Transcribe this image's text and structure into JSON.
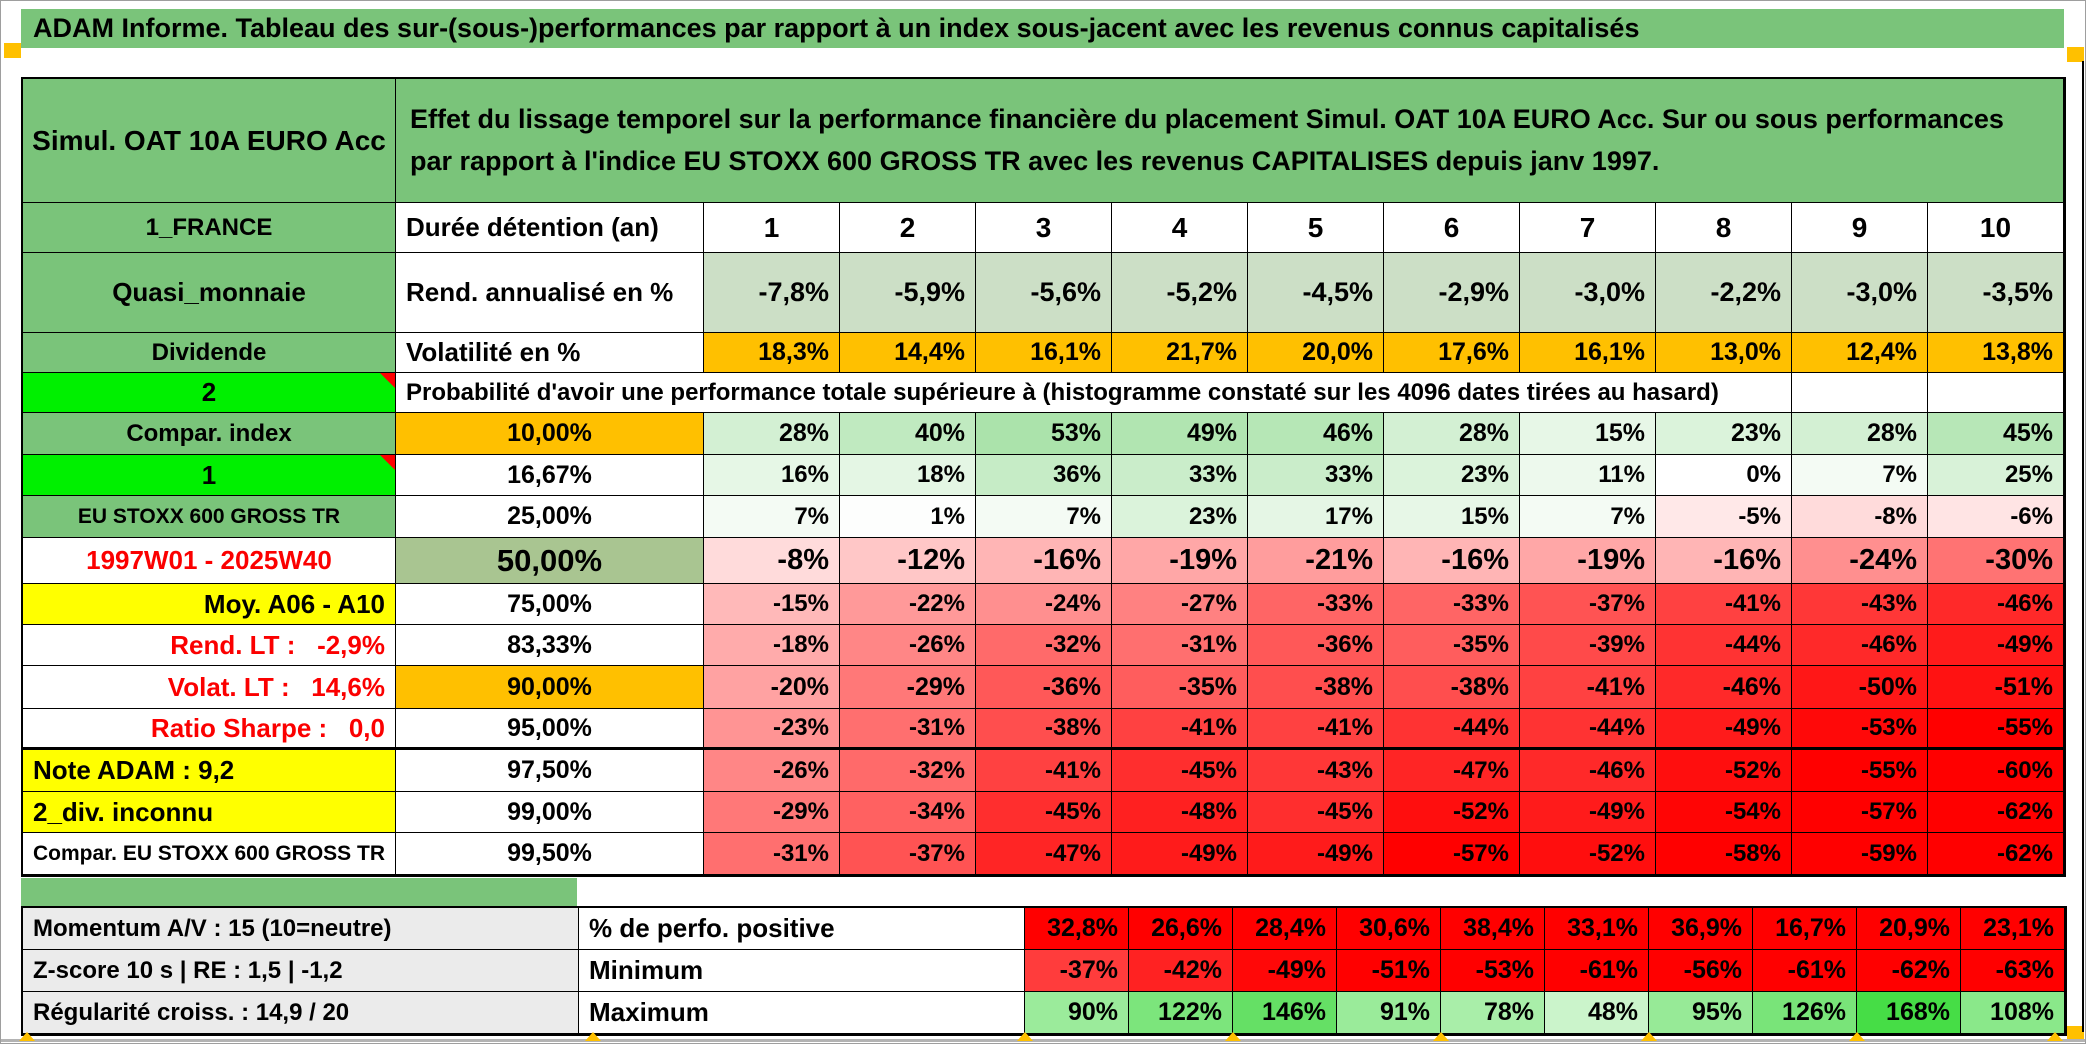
{
  "title": "ADAM Informe. Tableau des sur-(sous-)performances par rapport à un index sous-jacent avec les revenus connus capitalisés",
  "header": {
    "product": "Simul. OAT 10A EURO Acc",
    "description": "Effet du lissage temporel sur la performance financière du placement Simul. OAT 10A EURO Acc. Sur ou sous performances par rapport à l'indice EU STOXX 600 GROSS TR avec les revenus CAPITALISES depuis janv 1997."
  },
  "colors": {
    "header_green": "#7ac47a",
    "bright_green": "#00f000",
    "orange": "#ffc000",
    "yellow": "#ffff00",
    "sage_green": "#a9c591",
    "label_gray": "#ebebeb",
    "full_red": "#ff0000",
    "rend_row_green": "#ccdfc6"
  },
  "upper": {
    "rows": [
      {
        "c1": "1_FRANCE",
        "c1c": "bg-green c fs24",
        "c2": "Durée détention (an)",
        "c2c": "l fs26",
        "vc": "c fs28",
        "vals": [
          "1",
          "2",
          "3",
          "4",
          "5",
          "6",
          "7",
          "8",
          "9",
          "10"
        ],
        "bgs": [
          "#ffffff",
          "#ffffff",
          "#ffffff",
          "#ffffff",
          "#ffffff",
          "#ffffff",
          "#ffffff",
          "#ffffff",
          "#ffffff",
          "#ffffff"
        ]
      },
      {
        "c1": "Quasi_monnaie",
        "c1c": "bg-green c fs26",
        "c2": "Rend. annualisé en %",
        "c2c": "l fs26",
        "vc": "r fs27",
        "vals": [
          "-7,8%",
          "-5,9%",
          "-5,6%",
          "-5,2%",
          "-4,5%",
          "-2,9%",
          "-3,0%",
          "-2,2%",
          "-3,0%",
          "-3,5%"
        ],
        "bgs": [
          "#ccdfc6",
          "#ccdfc6",
          "#ccdfc6",
          "#ccdfc6",
          "#ccdfc6",
          "#ccdfc6",
          "#ccdfc6",
          "#ccdfc6",
          "#ccdfc6",
          "#ccdfc6"
        ]
      },
      {
        "c1": "Dividende",
        "c1c": "bg-green c fs24",
        "c2": "Volatilité en %",
        "c2c": "l fs26",
        "vc": "r fs25 w6",
        "vals": [
          "18,3%",
          "14,4%",
          "16,1%",
          "21,7%",
          "20,0%",
          "17,6%",
          "16,1%",
          "13,0%",
          "12,4%",
          "13,8%"
        ],
        "bgs": [
          "#ffc000",
          "#ffc000",
          "#ffc000",
          "#ffc000",
          "#ffc000",
          "#ffc000",
          "#ffc000",
          "#ffc000",
          "#ffc000",
          "#ffc000"
        ]
      },
      {
        "type": "note",
        "c1": "2",
        "c1c": "bg-bright corner c fs26",
        "notec": "l fs24",
        "note": "Probabilité d'avoir une performance totale supérieure à (histogramme constaté sur les 4096 dates tirées au hasard)"
      },
      {
        "c1": "Compar. index",
        "c1c": "bg-green c fs24",
        "c2": "10,00%",
        "c2c": "bg-orange c fs25",
        "vc": "r fs25",
        "vals": [
          "28%",
          "40%",
          "53%",
          "49%",
          "46%",
          "28%",
          "15%",
          "23%",
          "28%",
          "45%"
        ],
        "bgs": [
          "#d3f0d3",
          "#c0eac0",
          "#abe3ab",
          "#b1e5b1",
          "#b6e7b6",
          "#d3f0d3",
          "#e7f7e7",
          "#dbf3db",
          "#d3f0d3",
          "#b7e7b7"
        ]
      },
      {
        "c1": "1",
        "c1c": "bg-bright corner c fs26",
        "c2": "16,67%",
        "c2c": "c fs25",
        "vc": "r fs24 w6",
        "vals": [
          "16%",
          "18%",
          "36%",
          "33%",
          "33%",
          "23%",
          "11%",
          "0%",
          "7%",
          "25%"
        ],
        "bgs": [
          "#e6f7e6",
          "#e4f6e4",
          "#c6ecc6",
          "#caedca",
          "#caedca",
          "#dbf3db",
          "#edf9ed",
          "#ffffff",
          "#f4fbf4",
          "#d8f2d8"
        ]
      },
      {
        "c1": "EU STOXX 600 GROSS TR",
        "c1c": "bg-green c fs21",
        "c2": "25,00%",
        "c2c": "c fs25",
        "vc": "r fs24 w6",
        "vals": [
          "7%",
          "1%",
          "7%",
          "23%",
          "17%",
          "15%",
          "7%",
          "-5%",
          "-8%",
          "-6%"
        ],
        "bgs": [
          "#f4fbf4",
          "#fdfefd",
          "#f4fbf4",
          "#dbf3db",
          "#e5f6e5",
          "#e7f7e7",
          "#f4fbf4",
          "#ffe8e8",
          "#ffdbdb",
          "#ffe4e4"
        ]
      },
      {
        "c1": "1997W01 - 2025W40",
        "c1c": "red c fs26",
        "c2": "50,00%",
        "c2c": "bg-sage c fs31",
        "vc": "r fs29",
        "vals": [
          "-8%",
          "-12%",
          "-16%",
          "-19%",
          "-21%",
          "-16%",
          "-19%",
          "-16%",
          "-24%",
          "-30%"
        ],
        "bgs": [
          "#ffdbdb",
          "#ffc7c7",
          "#ffb5b5",
          "#ffa7a7",
          "#ff9d9d",
          "#ffb5b5",
          "#ffa7a7",
          "#ffb5b5",
          "#ff8f8f",
          "#ff7373"
        ]
      },
      {
        "c1": "Moy. A06 - A10",
        "c1c": "bg-yellow r fs26",
        "c2": "75,00%",
        "c2c": "c fs25",
        "vc": "r fs24 w6",
        "vals": [
          "-15%",
          "-22%",
          "-24%",
          "-27%",
          "-33%",
          "-33%",
          "-37%",
          "-41%",
          "-43%",
          "-46%"
        ],
        "bgs": [
          "#ffb9b9",
          "#ff9999",
          "#ff8f8f",
          "#ff8181",
          "#ff6565",
          "#ff6565",
          "#ff5353",
          "#ff4141",
          "#ff3737",
          "#ff2929"
        ]
      },
      {
        "c1": "Rend. LT :   -2,9%",
        "c1c": "red r fs26",
        "c2": "83,33%",
        "c2c": "c fs25",
        "vc": "r fs24 w6",
        "vals": [
          "-18%",
          "-26%",
          "-32%",
          "-31%",
          "-36%",
          "-35%",
          "-39%",
          "-44%",
          "-46%",
          "-49%"
        ],
        "bgs": [
          "#ffabab",
          "#ff8686",
          "#ff6a6a",
          "#ff6f6f",
          "#ff5858",
          "#ff5d5d",
          "#ff4a4a",
          "#ff3333",
          "#ff2929",
          "#ff1b1b"
        ]
      },
      {
        "c1": "Volat. LT :   14,6%",
        "c1c": "red r fs26",
        "c2": "90,00%",
        "c2c": "bg-orange c fs25",
        "vc": "r fs25",
        "vals": [
          "-20%",
          "-29%",
          "-36%",
          "-35%",
          "-38%",
          "-38%",
          "-41%",
          "-46%",
          "-50%",
          "-51%"
        ],
        "bgs": [
          "#ffa2a2",
          "#ff7878",
          "#ff5858",
          "#ff5d5d",
          "#ff4e4e",
          "#ff4e4e",
          "#ff4141",
          "#ff2929",
          "#ff1717",
          "#ff1212"
        ]
      },
      {
        "c1": "Ratio Sharpe :   0,0",
        "c1c": "red r fs26",
        "c2": "95,00%",
        "c2c": "c fs25",
        "vc": "r fs24 w6",
        "thick": true,
        "vals": [
          "-23%",
          "-31%",
          "-38%",
          "-41%",
          "-41%",
          "-44%",
          "-44%",
          "-49%",
          "-53%",
          "-55%"
        ],
        "bgs": [
          "#ff9494",
          "#ff6f6f",
          "#ff4e4e",
          "#ff4141",
          "#ff4141",
          "#ff3333",
          "#ff3333",
          "#ff1b1b",
          "#ff0909",
          "#ff0000"
        ]
      },
      {
        "c1": "Note ADAM : 9,2",
        "c1c": "bg-yellow l fs26",
        "c2": "97,50%",
        "c2c": "c fs25",
        "vc": "r fs24 w6",
        "vals": [
          "-26%",
          "-32%",
          "-41%",
          "-45%",
          "-43%",
          "-47%",
          "-46%",
          "-52%",
          "-55%",
          "-60%"
        ],
        "bgs": [
          "#ff8686",
          "#ff6a6a",
          "#ff4141",
          "#ff2e2e",
          "#ff3737",
          "#ff2525",
          "#ff2929",
          "#ff0e0e",
          "#ff0000",
          "#ff0000"
        ]
      },
      {
        "c1": "2_div. inconnu",
        "c1c": "bg-yellow l fs26",
        "c2": "99,00%",
        "c2c": "c fs25",
        "vc": "r fs24 w6",
        "vals": [
          "-29%",
          "-34%",
          "-45%",
          "-48%",
          "-45%",
          "-52%",
          "-49%",
          "-54%",
          "-57%",
          "-62%"
        ],
        "bgs": [
          "#ff7878",
          "#ff6161",
          "#ff2e2e",
          "#ff2020",
          "#ff2e2e",
          "#ff0e0e",
          "#ff1b1b",
          "#ff0505",
          "#ff0000",
          "#ff0000"
        ]
      },
      {
        "c1": "Compar. EU STOXX 600 GROSS TR",
        "c1c": "c fs21",
        "c2": "99,50%",
        "c2c": "c fs25",
        "vc": "r fs24 w6",
        "vals": [
          "-31%",
          "-37%",
          "-47%",
          "-49%",
          "-49%",
          "-57%",
          "-52%",
          "-58%",
          "-59%",
          "-62%"
        ],
        "bgs": [
          "#ff6f6f",
          "#ff5353",
          "#ff2525",
          "#ff1b1b",
          "#ff1b1b",
          "#ff0000",
          "#ff0e0e",
          "#ff0000",
          "#ff0000",
          "#ff0000"
        ]
      }
    ]
  },
  "bottom": {
    "rows": [
      {
        "c1": "Momentum A/V : 15 (10=neutre)",
        "c1c": "bg-gray l fs24",
        "c2": "% de perfo. positive",
        "c2c": "l fs26",
        "vc": "r fs25",
        "vals": [
          "32,8%",
          "26,6%",
          "28,4%",
          "30,6%",
          "38,4%",
          "33,1%",
          "36,9%",
          "16,7%",
          "20,9%",
          "23,1%"
        ],
        "bgs": [
          "#ff0000",
          "#ff0000",
          "#ff0000",
          "#ff0000",
          "#ff0000",
          "#ff0000",
          "#ff0000",
          "#ff0000",
          "#ff0000",
          "#ff0000"
        ]
      },
      {
        "c1": "Z-score 10 s | RE : 1,5 | -1,2",
        "c1c": "bg-gray l fs24",
        "c2": "Minimum",
        "c2c": "l fs26",
        "vc": "r fs25",
        "vals": [
          "-37%",
          "-42%",
          "-49%",
          "-51%",
          "-53%",
          "-61%",
          "-56%",
          "-61%",
          "-62%",
          "-63%"
        ],
        "bgs": [
          "#ff3c3c",
          "#ff2222",
          "#ff0808",
          "#ff0000",
          "#ff0000",
          "#ff0000",
          "#ff0000",
          "#ff0000",
          "#ff0000",
          "#ff0000"
        ]
      },
      {
        "c1": "Régularité croiss. : 14,9 / 20",
        "c1c": "bg-gray l fs24",
        "c2": "Maximum",
        "c2c": "l fs26",
        "vc": "r fs25",
        "vals": [
          "90%",
          "122%",
          "146%",
          "91%",
          "78%",
          "48%",
          "95%",
          "126%",
          "168%",
          "108%"
        ],
        "bgs": [
          "#9beb9b",
          "#7ce57c",
          "#65e065",
          "#9aeb9a",
          "#a9eea9",
          "#cbf4cb",
          "#97ea97",
          "#79e479",
          "#46dd46",
          "#8ae88a"
        ]
      }
    ]
  }
}
